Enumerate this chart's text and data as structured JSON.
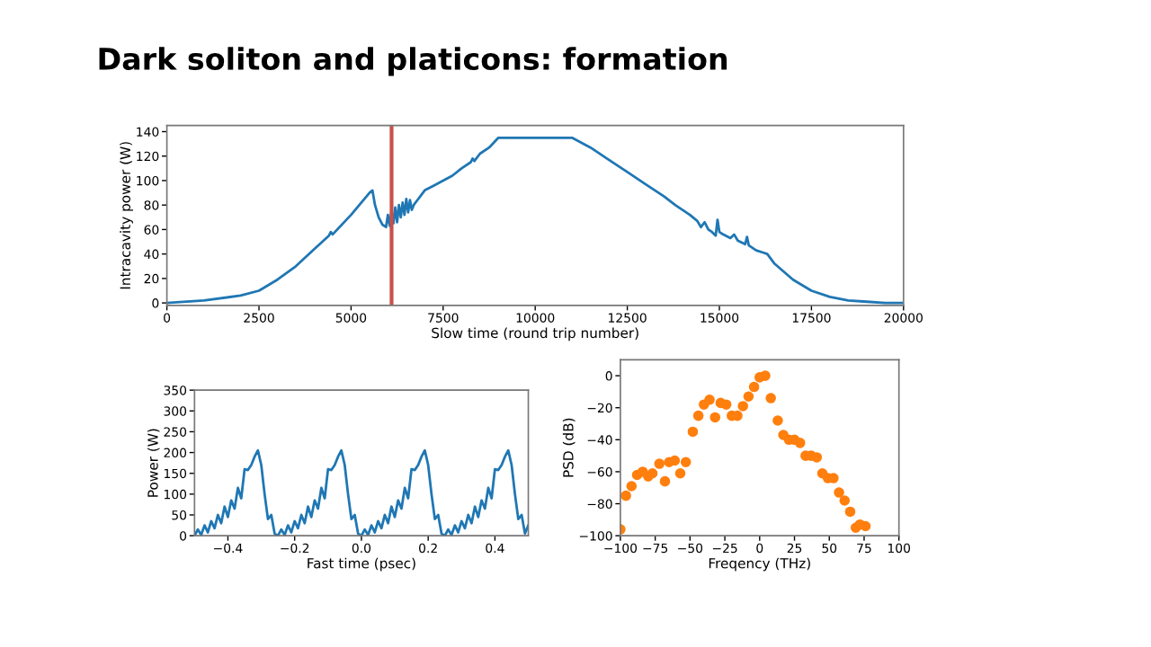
{
  "chart_data": [
    {
      "type": "line",
      "title": "Dark soliton and platicons: formation",
      "xlabel": "Slow time (round trip number)",
      "ylabel": "Intracavity power (W)",
      "x": [
        0,
        1000,
        2000,
        2500,
        3000,
        3500,
        4000,
        4400,
        4450,
        4500,
        5000,
        5500,
        5580,
        5650,
        5750,
        5850,
        5950,
        6000,
        6050,
        6100,
        6150,
        6200,
        6250,
        6300,
        6350,
        6400,
        6450,
        6500,
        6550,
        6600,
        6650,
        6700,
        6800,
        6900,
        7000,
        7250,
        7500,
        7750,
        8000,
        8250,
        8300,
        8350,
        8500,
        8750,
        9000,
        11000,
        11500,
        12000,
        12500,
        13000,
        13500,
        13800,
        14000,
        14200,
        14400,
        14500,
        14600,
        14700,
        14800,
        14900,
        14950,
        15000,
        15100,
        15300,
        15400,
        15500,
        15700,
        15750,
        15800,
        16000,
        16200,
        16300,
        16500,
        17000,
        17500,
        18000,
        18500,
        19000,
        19500,
        20000
      ],
      "series": [
        {
          "color": "#1f77b4",
          "values": [
            0,
            2,
            6,
            10,
            19,
            30,
            44,
            55,
            58,
            56,
            72,
            90,
            92,
            80,
            70,
            64,
            62,
            72,
            63,
            75,
            65,
            78,
            66,
            80,
            70,
            82,
            72,
            85,
            74,
            84,
            76,
            80,
            84,
            88,
            92,
            96,
            100,
            104,
            110,
            115,
            118,
            116,
            122,
            127,
            135,
            135,
            127,
            117,
            107,
            97,
            87,
            80,
            76,
            72,
            67,
            62,
            66,
            60,
            58,
            55,
            68,
            58,
            56,
            53,
            56,
            51,
            48,
            54,
            47,
            43,
            41,
            40,
            32,
            19,
            10,
            5,
            2,
            1,
            0,
            0
          ]
        }
      ],
      "xlim": [
        0,
        20000
      ],
      "xticks": [
        0,
        2500,
        5000,
        7500,
        10000,
        12500,
        15000,
        17500,
        20000
      ],
      "ylim": [
        -2,
        145
      ],
      "yticks": [
        0,
        20,
        40,
        60,
        80,
        100,
        120,
        140
      ],
      "ref_lines": [
        {
          "axis": "x",
          "value": 6100,
          "color": "#c9504b"
        }
      ],
      "grid": false,
      "legend": false
    },
    {
      "type": "line",
      "xlabel": "Fast time (psec)",
      "ylabel": "Power (W)",
      "x": [
        -0.5,
        -0.49,
        -0.48,
        -0.47,
        -0.46,
        -0.45,
        -0.44,
        -0.43,
        -0.42,
        -0.41,
        -0.4,
        -0.39,
        -0.38,
        -0.37,
        -0.36,
        -0.35,
        -0.34,
        -0.33,
        -0.32,
        -0.31,
        -0.3,
        -0.29,
        -0.28,
        -0.27,
        -0.26,
        -0.25,
        -0.24,
        -0.23,
        -0.22,
        -0.21,
        -0.2,
        -0.19,
        -0.18,
        -0.17,
        -0.16,
        -0.15,
        -0.14,
        -0.13,
        -0.12,
        -0.11,
        -0.1,
        -0.09,
        -0.08,
        -0.07,
        -0.06,
        -0.05,
        -0.04,
        -0.03,
        -0.02,
        -0.01,
        0,
        0.01,
        0.02,
        0.03,
        0.04,
        0.05,
        0.06,
        0.07,
        0.08,
        0.09,
        0.1,
        0.11,
        0.12,
        0.13,
        0.14,
        0.15,
        0.16,
        0.17,
        0.18,
        0.19,
        0.2,
        0.21,
        0.22,
        0.23,
        0.24,
        0.25,
        0.26,
        0.27,
        0.28,
        0.29,
        0.3,
        0.31,
        0.32,
        0.33,
        0.34,
        0.35,
        0.36,
        0.37,
        0.38,
        0.39,
        0.4,
        0.41,
        0.42,
        0.43,
        0.44,
        0.45,
        0.46,
        0.47,
        0.48,
        0.49,
        0.5
      ],
      "series": [
        {
          "color": "#1f77b4",
          "values": [
            0,
            15,
            2,
            25,
            8,
            35,
            18,
            50,
            30,
            70,
            45,
            85,
            65,
            115,
            90,
            160,
            158,
            170,
            190,
            205,
            170,
            100,
            40,
            50,
            5,
            0,
            15,
            2,
            25,
            8,
            35,
            18,
            50,
            30,
            70,
            45,
            85,
            65,
            115,
            90,
            160,
            158,
            170,
            190,
            205,
            170,
            100,
            40,
            50,
            5,
            0,
            15,
            2,
            25,
            8,
            35,
            18,
            50,
            30,
            70,
            45,
            85,
            65,
            115,
            90,
            160,
            158,
            170,
            190,
            205,
            170,
            100,
            40,
            50,
            5,
            0,
            15,
            2,
            25,
            8,
            35,
            18,
            50,
            30,
            70,
            45,
            85,
            65,
            115,
            90,
            160,
            158,
            170,
            190,
            205,
            170,
            100,
            40,
            50,
            5,
            25
          ]
        }
      ],
      "xlim": [
        -0.5,
        0.5
      ],
      "xticks": [
        {
          "value": -0.4,
          "label": "−0.4"
        },
        {
          "value": -0.2,
          "label": "−0.2"
        },
        {
          "value": 0,
          "label": "0.0"
        },
        {
          "value": 0.2,
          "label": "0.2"
        },
        {
          "value": 0.4,
          "label": "0.4"
        }
      ],
      "ylim": [
        0,
        350
      ],
      "yticks": [
        0,
        50,
        100,
        150,
        200,
        250,
        300,
        350
      ],
      "grid": false,
      "legend": false
    },
    {
      "type": "scatter",
      "xlabel": "Freqency (THz)",
      "ylabel": "PSD (dB)",
      "marker": "circle",
      "x": [
        -100,
        -96,
        -92,
        -88,
        -84,
        -80,
        -77,
        -72,
        -68,
        -65,
        -61,
        -57,
        -53,
        -48,
        -44,
        -40,
        -36,
        -32,
        -28,
        -24,
        -20,
        -16,
        -12,
        -8,
        -4,
        0,
        4,
        8,
        13,
        17,
        21,
        25,
        29,
        33,
        37,
        41,
        45,
        49,
        53,
        57,
        61,
        65,
        69,
        72,
        76
      ],
      "series": [
        {
          "color": "#ff7f0e",
          "values": [
            -96,
            -75,
            -69,
            -62,
            -60,
            -63,
            -61,
            -55,
            -66,
            -54,
            -53,
            -61,
            -54,
            -35,
            -25,
            -18,
            -15,
            -26,
            -17,
            -18,
            -25,
            -25,
            -19,
            -13,
            -7,
            -1,
            0,
            -14,
            -28,
            -37,
            -40,
            -40,
            -42,
            -50,
            -50,
            -51,
            -61,
            -64,
            -64,
            -73,
            -78,
            -85,
            -95,
            -93,
            -94
          ]
        }
      ],
      "xlim": [
        -100,
        100
      ],
      "xticks": [
        {
          "value": -100,
          "label": "−100"
        },
        {
          "value": -75,
          "label": "−75"
        },
        {
          "value": -50,
          "label": "−50"
        },
        {
          "value": -25,
          "label": "−25"
        },
        0,
        25,
        50,
        75,
        100
      ],
      "ylim": [
        -100,
        10
      ],
      "yticks": [
        {
          "value": -100,
          "label": "−100"
        },
        {
          "value": -80,
          "label": "−80"
        },
        {
          "value": -60,
          "label": "−60"
        },
        {
          "value": -40,
          "label": "−40"
        },
        {
          "value": -20,
          "label": "−20"
        },
        0
      ],
      "grid": false,
      "legend": false
    }
  ]
}
